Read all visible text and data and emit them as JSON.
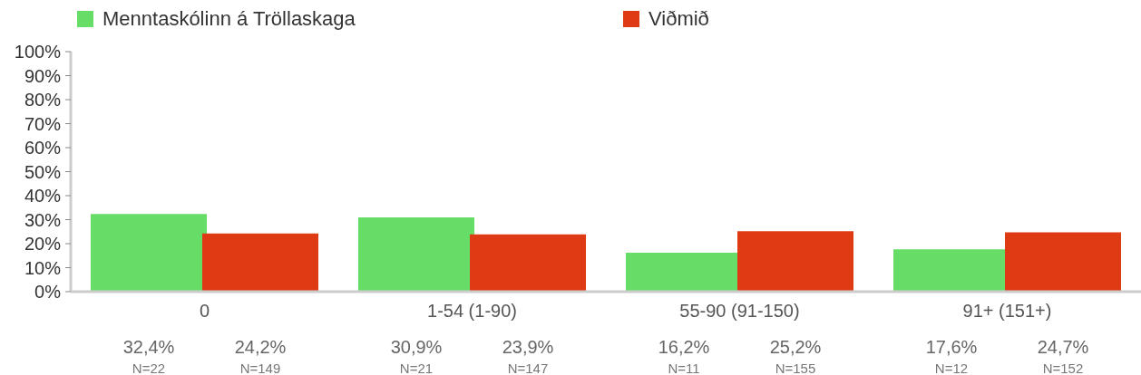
{
  "chart_data": {
    "type": "bar",
    "categories": [
      "0",
      "1-54 (1-90)",
      "55-90 (91-150)",
      "91+ (151+)"
    ],
    "series": [
      {
        "name": "Menntaskólinn á Tröllaskaga",
        "color": "#66dd66",
        "values": [
          32.4,
          30.9,
          16.2,
          17.6
        ],
        "value_labels": [
          "32,4%",
          "30,9%",
          "16,2%",
          "17,6%"
        ]
      },
      {
        "name": "Viðmið",
        "color": "#de3a14",
        "values": [
          24.2,
          23.9,
          25.2,
          24.7
        ],
        "value_labels": [
          "24,2%",
          "23,9%",
          "25,2%",
          "24,7%"
        ]
      }
    ],
    "ylim": [
      0,
      100
    ],
    "yticks": [
      {
        "value": 0,
        "label": "0%"
      },
      {
        "value": 10,
        "label": "10%"
      },
      {
        "value": 20,
        "label": "20%"
      },
      {
        "value": 30,
        "label": "30%"
      },
      {
        "value": 40,
        "label": "40%"
      },
      {
        "value": 50,
        "label": "50%"
      },
      {
        "value": 60,
        "label": "60%"
      },
      {
        "value": 70,
        "label": "70%"
      },
      {
        "value": 80,
        "label": "80%"
      },
      {
        "value": 90,
        "label": "90%"
      },
      {
        "value": 100,
        "label": "100%"
      }
    ],
    "legend": "top left",
    "annotations": [
      "N=22",
      "N=149",
      "N=21",
      "N=147",
      "N=11",
      "N=155",
      "N=12",
      "N=152"
    ]
  }
}
